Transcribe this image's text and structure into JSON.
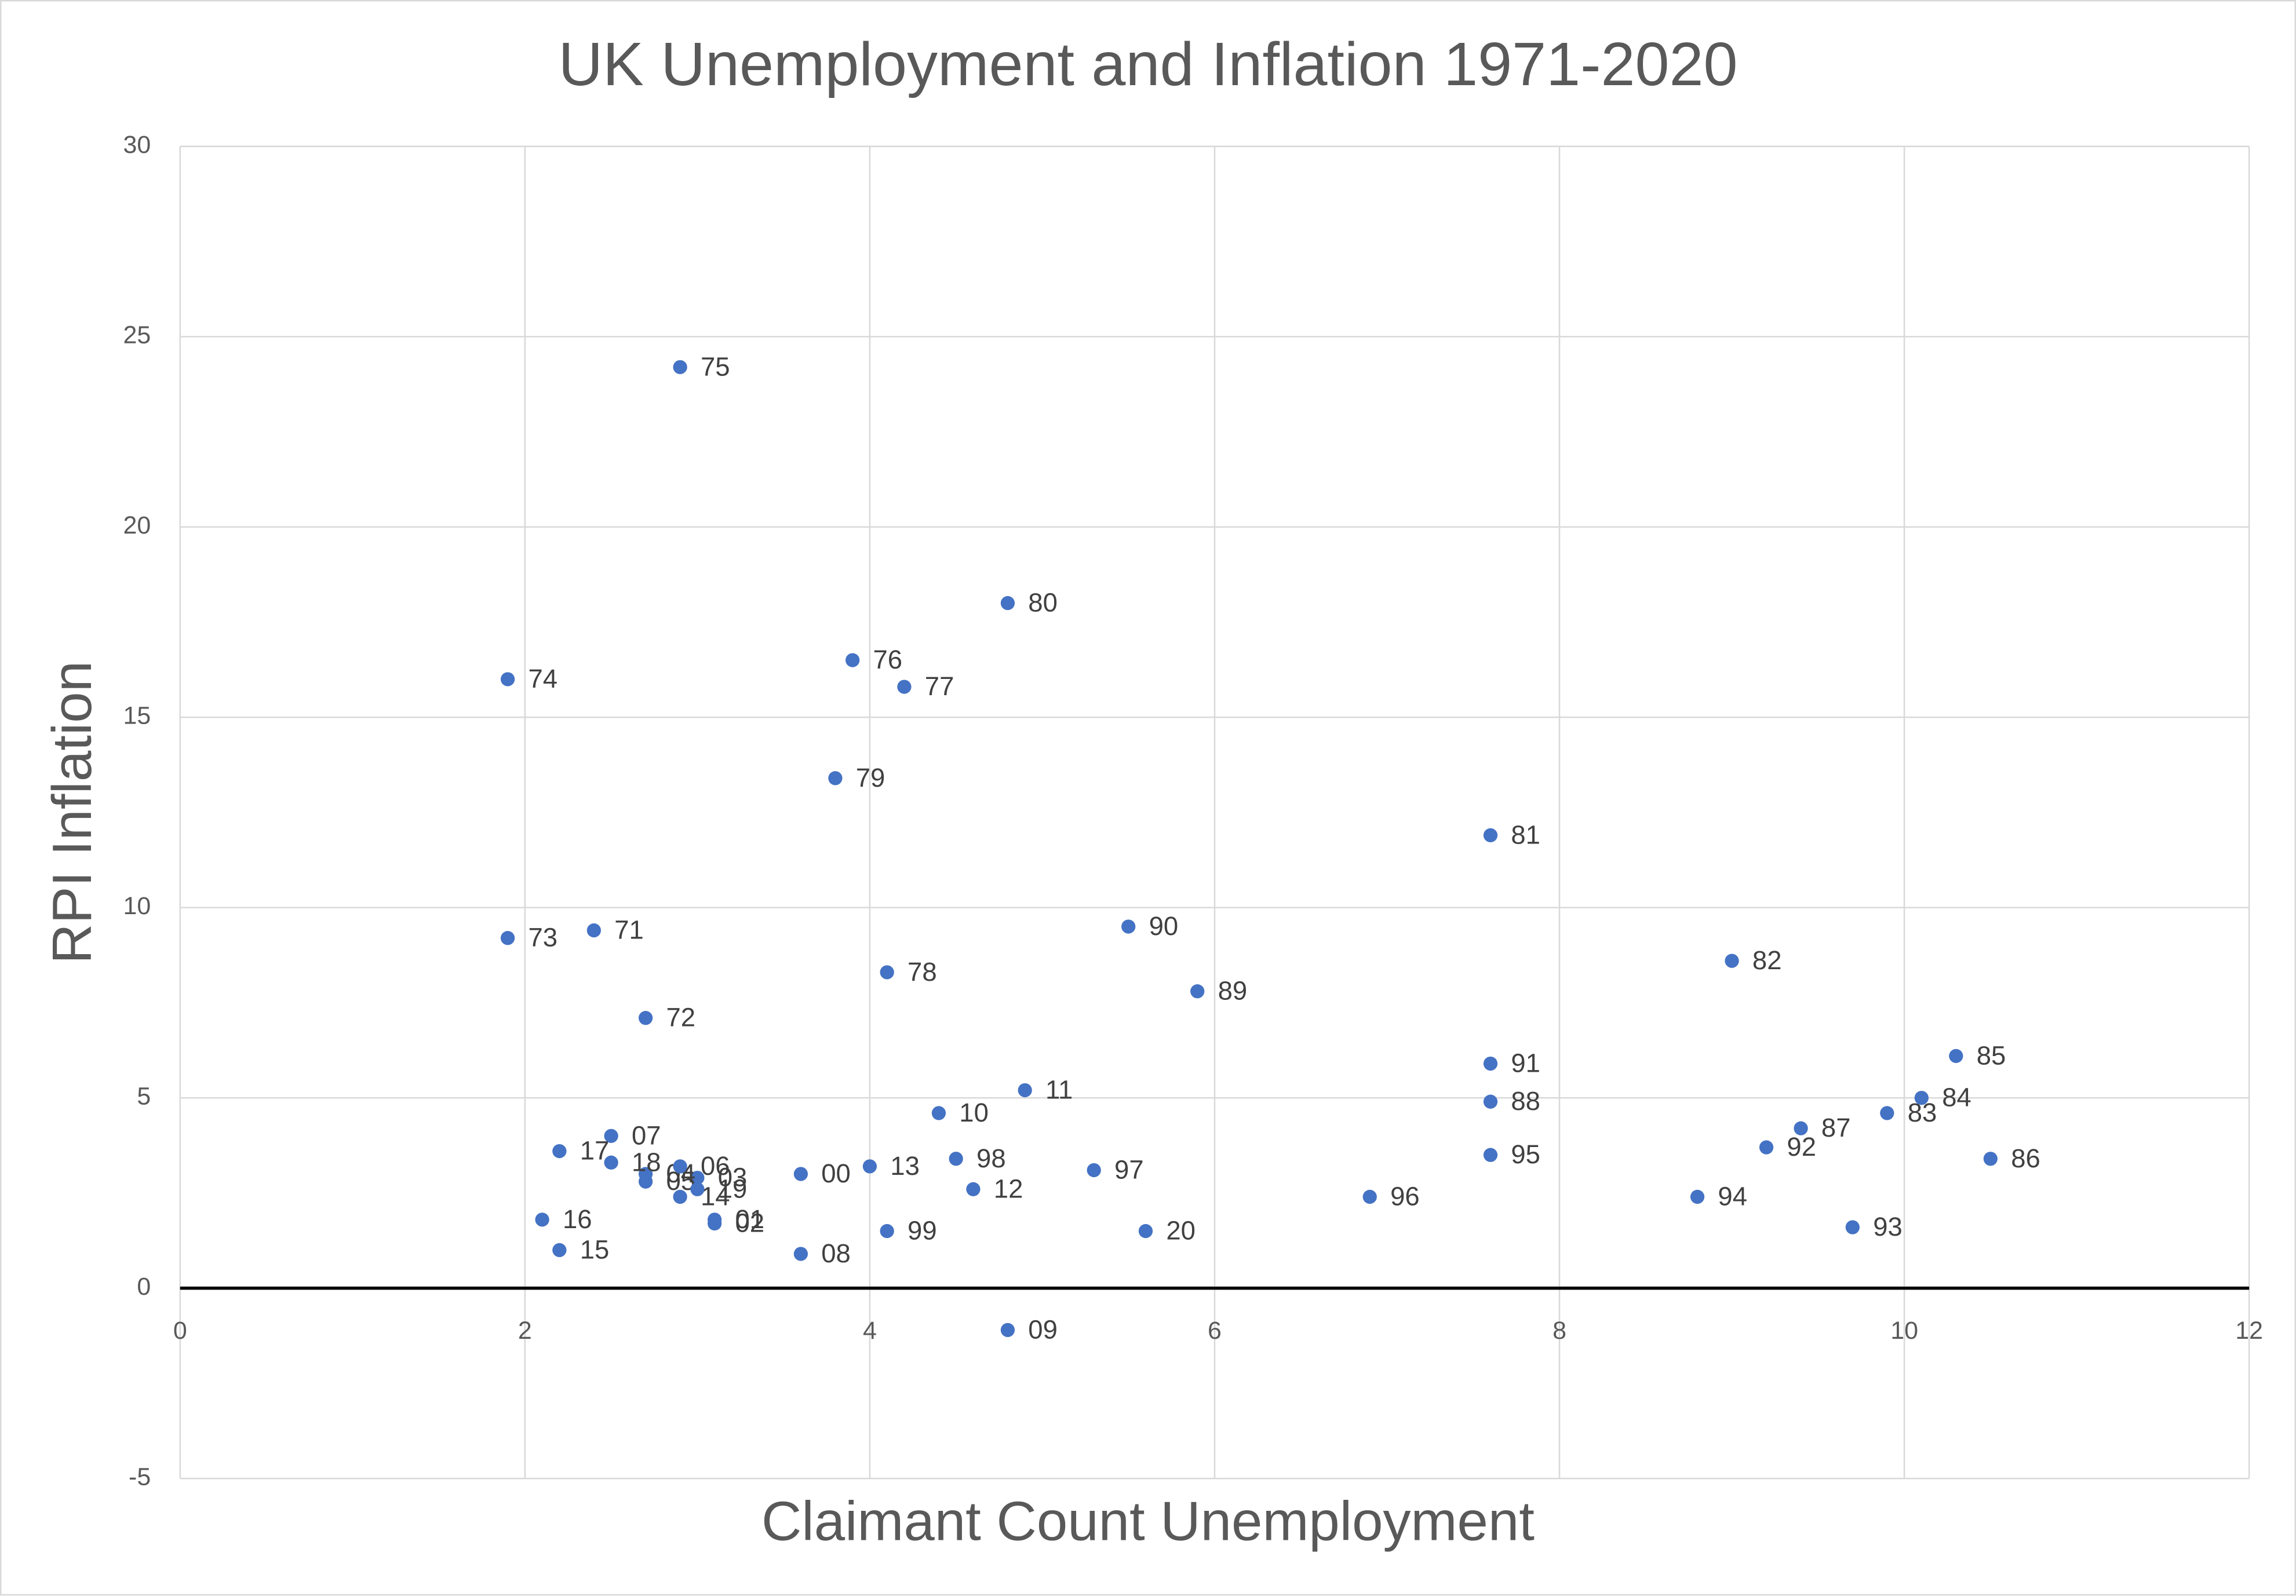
{
  "chart_data": {
    "type": "scatter",
    "title": "UK Unemployment and Inflation 1971-2020",
    "x_label": "Claimant Count Unemployment",
    "y_label": "RPI Inflation",
    "color": "#4472c4",
    "grid": true,
    "xlim": [
      0,
      12
    ],
    "xticks": [
      0,
      2,
      4,
      6,
      8,
      10,
      12
    ],
    "ylim": [
      -5,
      30
    ],
    "yticks": [
      -5,
      0,
      5,
      10,
      15,
      20,
      25,
      30
    ],
    "labels": [
      "71",
      "72",
      "73",
      "74",
      "75",
      "76",
      "77",
      "78",
      "79",
      "80",
      "81",
      "82",
      "83",
      "84",
      "85",
      "86",
      "87",
      "88",
      "89",
      "90",
      "91",
      "92",
      "93",
      "94",
      "95",
      "96",
      "97",
      "98",
      "99",
      "00",
      "01",
      "02",
      "03",
      "04",
      "05",
      "06",
      "07",
      "08",
      "09",
      "10",
      "11",
      "12",
      "13",
      "14",
      "15",
      "16",
      "17",
      "18",
      "19",
      "20"
    ],
    "x": [
      2.4,
      2.7,
      1.9,
      1.9,
      2.9,
      3.9,
      4.2,
      4.1,
      3.8,
      4.8,
      7.6,
      9.0,
      9.9,
      10.1,
      10.3,
      10.5,
      9.4,
      7.6,
      5.9,
      5.5,
      7.6,
      9.2,
      9.7,
      8.8,
      7.6,
      6.9,
      5.3,
      4.5,
      4.1,
      3.6,
      3.1,
      3.1,
      3.0,
      2.7,
      2.7,
      2.9,
      2.5,
      3.6,
      4.8,
      4.4,
      4.9,
      4.6,
      4.0,
      2.9,
      2.2,
      2.1,
      2.2,
      2.5,
      3.0,
      5.6
    ],
    "y": [
      9.4,
      7.1,
      9.2,
      16.0,
      24.2,
      16.5,
      15.8,
      8.3,
      13.4,
      18.0,
      11.9,
      8.6,
      4.6,
      5.0,
      6.1,
      3.4,
      4.2,
      4.9,
      7.8,
      9.5,
      5.9,
      3.7,
      1.6,
      2.4,
      3.5,
      2.4,
      3.1,
      3.4,
      1.5,
      3.0,
      1.8,
      1.7,
      2.9,
      3.0,
      2.8,
      3.2,
      4.0,
      0.9,
      -1.1,
      4.6,
      5.2,
      2.6,
      3.2,
      2.4,
      1.0,
      1.8,
      3.6,
      3.3,
      2.6,
      1.5
    ]
  }
}
